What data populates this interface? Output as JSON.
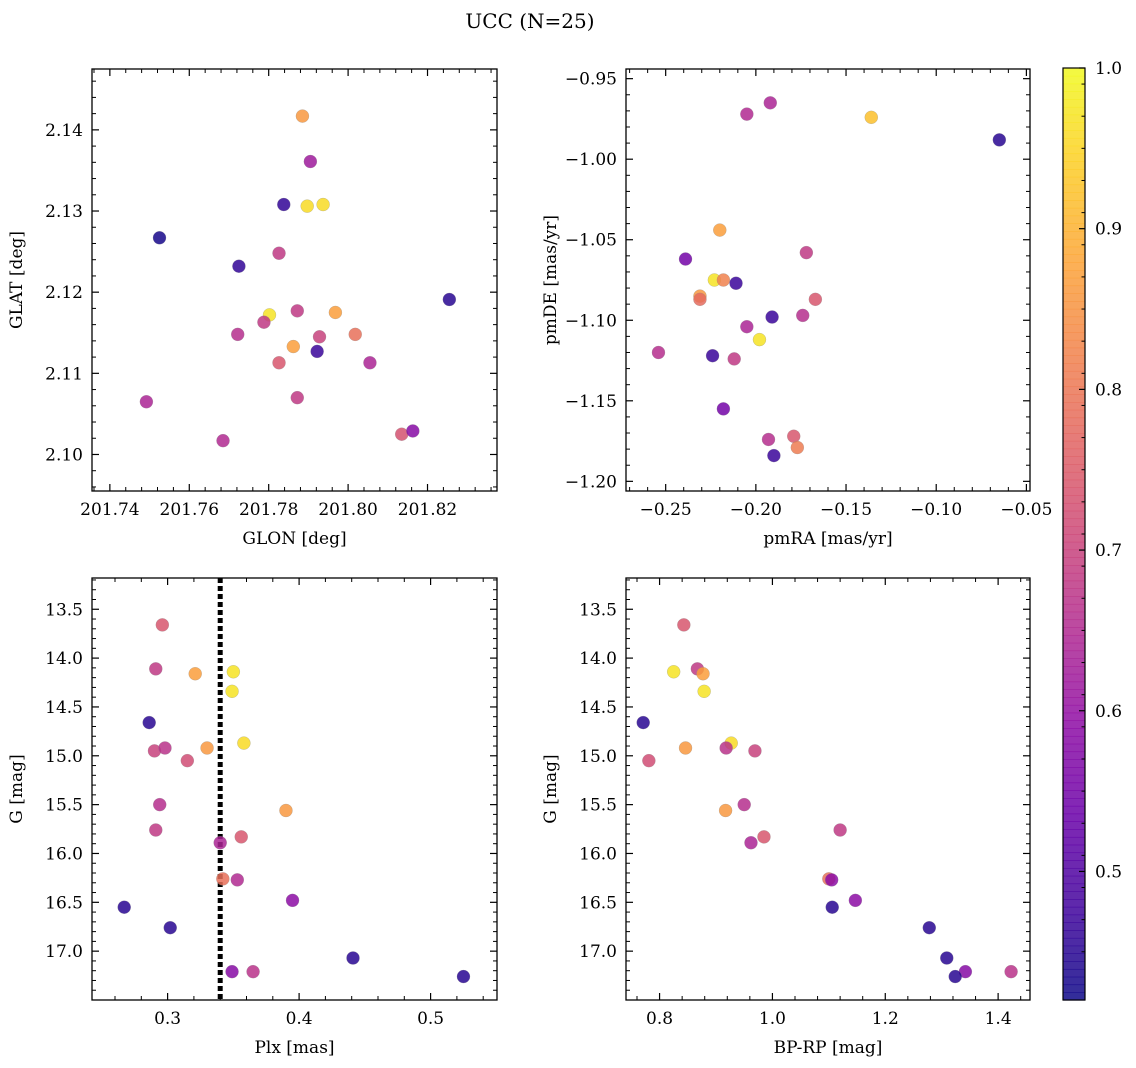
{
  "figure": {
    "title": "UCC (N=25)"
  },
  "colorbar": {
    "cmap": "plasma",
    "range": [
      0.42,
      1.0
    ],
    "ticks": [
      0.5,
      0.6,
      0.7,
      0.8,
      0.9,
      1.0
    ],
    "tick_labels": [
      "0.5",
      "0.6",
      "0.7",
      "0.8",
      "0.9",
      "1.0"
    ]
  },
  "chart_data": [
    {
      "type": "scatter",
      "title": "",
      "xlabel": "GLON [deg]",
      "ylabel": "GLAT [deg]",
      "xlim": [
        201.7355,
        201.8375
      ],
      "ylim": [
        2.0955,
        2.1475
      ],
      "xticks": [
        201.74,
        201.76,
        201.78,
        201.8,
        201.82
      ],
      "xtick_labels": [
        "201.74",
        "201.76",
        "201.78",
        "201.80",
        "201.82"
      ],
      "yticks": [
        2.1,
        2.11,
        2.12,
        2.13,
        2.14
      ],
      "ytick_labels": [
        "2.10",
        "2.11",
        "2.12",
        "2.13",
        "2.14"
      ],
      "y_inverted": false,
      "grid": false,
      "points": [
        {
          "x": 201.7885,
          "y": 2.1417,
          "c": 0.86
        },
        {
          "x": 201.7905,
          "y": 2.1361,
          "c": 0.62
        },
        {
          "x": 201.7838,
          "y": 2.1308,
          "c": 0.46
        },
        {
          "x": 201.7897,
          "y": 2.1306,
          "c": 0.96
        },
        {
          "x": 201.7937,
          "y": 2.1308,
          "c": 0.96
        },
        {
          "x": 201.7525,
          "y": 2.1267,
          "c": 0.43
        },
        {
          "x": 201.7725,
          "y": 2.1232,
          "c": 0.46
        },
        {
          "x": 201.7826,
          "y": 2.1248,
          "c": 0.68
        },
        {
          "x": 201.8255,
          "y": 2.1191,
          "c": 0.45
        },
        {
          "x": 201.7802,
          "y": 2.1172,
          "c": 0.97
        },
        {
          "x": 201.7788,
          "y": 2.1163,
          "c": 0.68
        },
        {
          "x": 201.7872,
          "y": 2.1177,
          "c": 0.68
        },
        {
          "x": 201.7968,
          "y": 2.1175,
          "c": 0.87
        },
        {
          "x": 201.7722,
          "y": 2.1148,
          "c": 0.66
        },
        {
          "x": 201.7928,
          "y": 2.1145,
          "c": 0.7
        },
        {
          "x": 201.8018,
          "y": 2.1148,
          "c": 0.79
        },
        {
          "x": 201.7862,
          "y": 2.1133,
          "c": 0.87
        },
        {
          "x": 201.7922,
          "y": 2.1127,
          "c": 0.47
        },
        {
          "x": 201.7826,
          "y": 2.1113,
          "c": 0.74
        },
        {
          "x": 201.8055,
          "y": 2.1113,
          "c": 0.64
        },
        {
          "x": 201.7492,
          "y": 2.1065,
          "c": 0.64
        },
        {
          "x": 201.7872,
          "y": 2.107,
          "c": 0.68
        },
        {
          "x": 201.7685,
          "y": 2.1017,
          "c": 0.65
        },
        {
          "x": 201.8135,
          "y": 2.1025,
          "c": 0.73
        },
        {
          "x": 201.8163,
          "y": 2.1029,
          "c": 0.58
        }
      ]
    },
    {
      "type": "scatter",
      "title": "",
      "xlabel": "pmRA [mas/yr]",
      "ylabel": "pmDE [mas/yr]",
      "xlim": [
        -0.272,
        -0.048
      ],
      "ylim": [
        -1.206,
        -0.944
      ],
      "xticks": [
        -0.25,
        -0.2,
        -0.15,
        -0.1,
        -0.05
      ],
      "xtick_labels": [
        "−0.25",
        "−0.20",
        "−0.15",
        "−0.10",
        "−0.05"
      ],
      "yticks": [
        -1.2,
        -1.15,
        -1.1,
        -1.05,
        -1.0,
        -0.95
      ],
      "ytick_labels": [
        "−1.20",
        "−1.15",
        "−1.10",
        "−1.05",
        "−1.00",
        "−0.95"
      ],
      "y_inverted": false,
      "grid": false,
      "points": [
        {
          "x": -0.192,
          "y": -0.965,
          "c": 0.64
        },
        {
          "x": -0.205,
          "y": -0.972,
          "c": 0.65
        },
        {
          "x": -0.136,
          "y": -0.974,
          "c": 0.92
        },
        {
          "x": -0.065,
          "y": -0.988,
          "c": 0.45
        },
        {
          "x": -0.22,
          "y": -1.044,
          "c": 0.87
        },
        {
          "x": -0.172,
          "y": -1.058,
          "c": 0.68
        },
        {
          "x": -0.239,
          "y": -1.062,
          "c": 0.55
        },
        {
          "x": -0.223,
          "y": -1.075,
          "c": 0.97
        },
        {
          "x": -0.218,
          "y": -1.075,
          "c": 0.82
        },
        {
          "x": -0.211,
          "y": -1.077,
          "c": 0.47
        },
        {
          "x": -0.231,
          "y": -1.085,
          "c": 0.86
        },
        {
          "x": -0.231,
          "y": -1.087,
          "c": 0.78
        },
        {
          "x": -0.167,
          "y": -1.087,
          "c": 0.74
        },
        {
          "x": -0.174,
          "y": -1.097,
          "c": 0.66
        },
        {
          "x": -0.191,
          "y": -1.098,
          "c": 0.47
        },
        {
          "x": -0.205,
          "y": -1.104,
          "c": 0.64
        },
        {
          "x": -0.198,
          "y": -1.112,
          "c": 0.97
        },
        {
          "x": -0.254,
          "y": -1.12,
          "c": 0.66
        },
        {
          "x": -0.224,
          "y": -1.122,
          "c": 0.47
        },
        {
          "x": -0.212,
          "y": -1.124,
          "c": 0.68
        },
        {
          "x": -0.218,
          "y": -1.155,
          "c": 0.55
        },
        {
          "x": -0.193,
          "y": -1.174,
          "c": 0.66
        },
        {
          "x": -0.179,
          "y": -1.172,
          "c": 0.74
        },
        {
          "x": -0.177,
          "y": -1.179,
          "c": 0.81
        },
        {
          "x": -0.19,
          "y": -1.184,
          "c": 0.47
        }
      ]
    },
    {
      "type": "scatter",
      "title": "",
      "xlabel": "Plx [mas]",
      "ylabel": "G [mag]",
      "xlim": [
        0.2425,
        0.5505
      ],
      "ylim": [
        13.18,
        17.5
      ],
      "xticks": [
        0.3,
        0.4,
        0.5
      ],
      "xtick_labels": [
        "0.3",
        "0.4",
        "0.5"
      ],
      "yticks": [
        13.5,
        14.0,
        14.5,
        15.0,
        15.5,
        16.0,
        16.5,
        17.0
      ],
      "ytick_labels": [
        "13.5",
        "14.0",
        "14.5",
        "15.0",
        "15.5",
        "16.0",
        "16.5",
        "17.0"
      ],
      "y_inverted": true,
      "grid": false,
      "vline": {
        "x": 0.34,
        "style": "dotted"
      },
      "points": [
        {
          "x": 0.296,
          "y": 13.66,
          "c": 0.74
        },
        {
          "x": 0.291,
          "y": 14.11,
          "c": 0.68
        },
        {
          "x": 0.321,
          "y": 14.16,
          "c": 0.87
        },
        {
          "x": 0.35,
          "y": 14.14,
          "c": 0.97
        },
        {
          "x": 0.349,
          "y": 14.34,
          "c": 0.97
        },
        {
          "x": 0.286,
          "y": 14.66,
          "c": 0.45
        },
        {
          "x": 0.358,
          "y": 14.87,
          "c": 0.96
        },
        {
          "x": 0.29,
          "y": 14.95,
          "c": 0.7
        },
        {
          "x": 0.298,
          "y": 14.92,
          "c": 0.67
        },
        {
          "x": 0.33,
          "y": 14.92,
          "c": 0.86
        },
        {
          "x": 0.315,
          "y": 15.05,
          "c": 0.72
        },
        {
          "x": 0.294,
          "y": 15.5,
          "c": 0.66
        },
        {
          "x": 0.39,
          "y": 15.56,
          "c": 0.86
        },
        {
          "x": 0.291,
          "y": 15.76,
          "c": 0.68
        },
        {
          "x": 0.356,
          "y": 15.83,
          "c": 0.74
        },
        {
          "x": 0.34,
          "y": 15.89,
          "c": 0.64
        },
        {
          "x": 0.342,
          "y": 16.26,
          "c": 0.79
        },
        {
          "x": 0.353,
          "y": 16.27,
          "c": 0.65
        },
        {
          "x": 0.395,
          "y": 16.48,
          "c": 0.59
        },
        {
          "x": 0.267,
          "y": 16.55,
          "c": 0.45
        },
        {
          "x": 0.302,
          "y": 16.76,
          "c": 0.45
        },
        {
          "x": 0.441,
          "y": 17.07,
          "c": 0.45
        },
        {
          "x": 0.349,
          "y": 17.21,
          "c": 0.58
        },
        {
          "x": 0.365,
          "y": 17.21,
          "c": 0.67
        },
        {
          "x": 0.525,
          "y": 17.26,
          "c": 0.45
        }
      ]
    },
    {
      "type": "scatter",
      "title": "",
      "xlabel": "BP-RP [mag]",
      "ylabel": "G [mag]",
      "xlim": [
        0.7405,
        1.4565
      ],
      "ylim": [
        13.18,
        17.5
      ],
      "xticks": [
        0.8,
        1.0,
        1.2,
        1.4
      ],
      "xtick_labels": [
        "0.8",
        "1.0",
        "1.2",
        "1.4"
      ],
      "yticks": [
        13.5,
        14.0,
        14.5,
        15.0,
        15.5,
        16.0,
        16.5,
        17.0
      ],
      "ytick_labels": [
        "13.5",
        "14.0",
        "14.5",
        "15.0",
        "15.5",
        "16.0",
        "16.5",
        "17.0"
      ],
      "y_inverted": true,
      "grid": false,
      "points": [
        {
          "x": 0.843,
          "y": 13.66,
          "c": 0.74
        },
        {
          "x": 0.867,
          "y": 14.11,
          "c": 0.68
        },
        {
          "x": 0.825,
          "y": 14.14,
          "c": 0.97
        },
        {
          "x": 0.877,
          "y": 14.16,
          "c": 0.87
        },
        {
          "x": 0.879,
          "y": 14.34,
          "c": 0.97
        },
        {
          "x": 0.771,
          "y": 14.66,
          "c": 0.45
        },
        {
          "x": 0.927,
          "y": 14.87,
          "c": 0.96
        },
        {
          "x": 0.918,
          "y": 14.92,
          "c": 0.67
        },
        {
          "x": 0.846,
          "y": 14.92,
          "c": 0.86
        },
        {
          "x": 0.969,
          "y": 14.95,
          "c": 0.7
        },
        {
          "x": 0.781,
          "y": 15.05,
          "c": 0.72
        },
        {
          "x": 0.95,
          "y": 15.5,
          "c": 0.66
        },
        {
          "x": 0.917,
          "y": 15.56,
          "c": 0.86
        },
        {
          "x": 1.12,
          "y": 15.76,
          "c": 0.68
        },
        {
          "x": 0.985,
          "y": 15.83,
          "c": 0.74
        },
        {
          "x": 0.962,
          "y": 15.89,
          "c": 0.64
        },
        {
          "x": 1.1,
          "y": 16.26,
          "c": 0.79
        },
        {
          "x": 1.105,
          "y": 16.27,
          "c": 0.59
        },
        {
          "x": 1.147,
          "y": 16.48,
          "c": 0.59
        },
        {
          "x": 1.106,
          "y": 16.55,
          "c": 0.45
        },
        {
          "x": 1.278,
          "y": 16.76,
          "c": 0.45
        },
        {
          "x": 1.309,
          "y": 17.07,
          "c": 0.45
        },
        {
          "x": 1.342,
          "y": 17.21,
          "c": 0.58
        },
        {
          "x": 1.423,
          "y": 17.21,
          "c": 0.67
        },
        {
          "x": 1.324,
          "y": 17.26,
          "c": 0.45
        }
      ]
    }
  ]
}
